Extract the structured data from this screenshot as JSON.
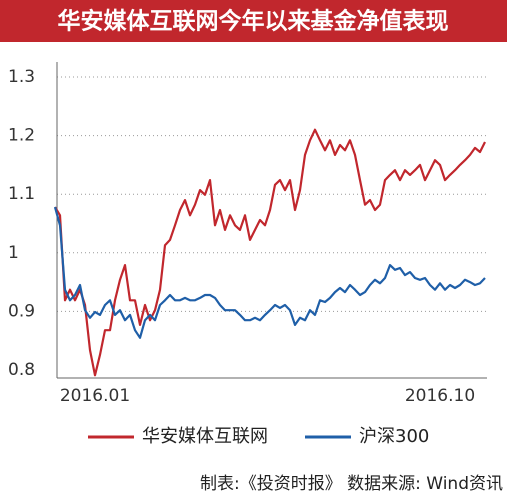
{
  "chart_data": {
    "type": "line",
    "title": "华安媒体互联网今年以来基金净值表现",
    "source": "制表:《投资时报》  数据来源: Wind资讯",
    "categories": [
      null,
      null,
      null,
      null,
      null,
      null,
      null,
      null,
      "2016.01",
      null,
      null,
      null,
      null,
      null,
      null,
      null,
      null,
      null,
      null,
      null,
      null,
      null,
      null,
      null,
      null,
      null,
      null,
      null,
      null,
      null,
      null,
      null,
      null,
      null,
      null,
      null,
      null,
      null,
      null,
      null,
      null,
      null,
      null,
      null,
      null,
      null,
      null,
      null,
      null,
      null,
      null,
      null,
      null,
      null,
      null,
      null,
      null,
      null,
      null,
      null,
      null,
      null,
      null,
      null,
      null,
      null,
      null,
      null,
      null,
      null,
      null,
      null,
      null,
      null,
      null,
      null,
      null,
      "2016.10",
      null,
      null,
      null,
      null,
      null,
      null,
      null,
      null,
      null
    ],
    "series": [
      {
        "name": "华安媒体互联网",
        "color": "#c1272d",
        "values": [
          1.078,
          1.064,
          0.919,
          0.937,
          0.919,
          0.937,
          0.911,
          0.834,
          0.791,
          0.826,
          0.868,
          0.868,
          0.919,
          0.954,
          0.979,
          0.919,
          0.919,
          0.877,
          0.911,
          0.885,
          0.902,
          0.937,
          1.013,
          1.022,
          1.047,
          1.073,
          1.09,
          1.064,
          1.082,
          1.107,
          1.099,
          1.124,
          1.047,
          1.073,
          1.039,
          1.064,
          1.047,
          1.039,
          1.064,
          1.022,
          1.039,
          1.056,
          1.047,
          1.073,
          1.116,
          1.124,
          1.107,
          1.124,
          1.073,
          1.107,
          1.167,
          1.192,
          1.21,
          1.192,
          1.175,
          1.192,
          1.167,
          1.184,
          1.175,
          1.192,
          1.167,
          1.124,
          1.082,
          1.09,
          1.073,
          1.082,
          1.124,
          1.133,
          1.141,
          1.124,
          1.141,
          1.133,
          1.141,
          1.15,
          1.124,
          1.141,
          1.158,
          1.15,
          1.124,
          1.133,
          1.141,
          1.15,
          1.158,
          1.167,
          1.179,
          1.172,
          1.189
        ]
      },
      {
        "name": "沪深300",
        "color": "#1f5fa8",
        "values": [
          1.078,
          1.047,
          0.937,
          0.919,
          0.928,
          0.945,
          0.902,
          0.889,
          0.899,
          0.894,
          0.911,
          0.919,
          0.894,
          0.902,
          0.885,
          0.894,
          0.868,
          0.855,
          0.885,
          0.894,
          0.885,
          0.911,
          0.919,
          0.928,
          0.919,
          0.919,
          0.923,
          0.919,
          0.919,
          0.923,
          0.928,
          0.928,
          0.923,
          0.911,
          0.902,
          0.902,
          0.902,
          0.894,
          0.885,
          0.885,
          0.889,
          0.885,
          0.894,
          0.902,
          0.911,
          0.906,
          0.911,
          0.902,
          0.877,
          0.889,
          0.885,
          0.902,
          0.894,
          0.919,
          0.916,
          0.923,
          0.933,
          0.94,
          0.933,
          0.945,
          0.937,
          0.928,
          0.933,
          0.945,
          0.954,
          0.948,
          0.957,
          0.979,
          0.971,
          0.974,
          0.962,
          0.967,
          0.957,
          0.954,
          0.957,
          0.945,
          0.937,
          0.948,
          0.937,
          0.945,
          0.94,
          0.945,
          0.954,
          0.95,
          0.945,
          0.948,
          0.957
        ]
      }
    ],
    "ylim": [
      0.8,
      1.3
    ],
    "yticks": [
      0.8,
      0.9,
      1,
      1.1,
      1.2,
      1.3
    ],
    "grid": true
  }
}
